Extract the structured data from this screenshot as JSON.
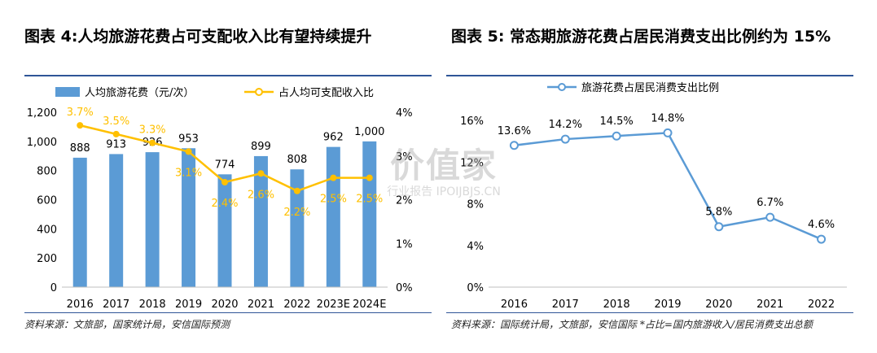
{
  "left": {
    "title": "图表 4:人均旅游花费占可支配收入比有望持续提升",
    "source": "资料来源：文旅部，国家统计局，安信国际预测"
  },
  "right": {
    "title": "图表 5: 常态期旅游花费占居民消费支出比例约为 15%",
    "source": "资料来源：国际统计局，文旅部，安信国际 *占比=国内旅游收入/居民消费支出总额"
  },
  "watermark": {
    "main": "价值家",
    "sub": "行业报告  IPOIJBJS.CN"
  },
  "colors": {
    "bar": "#5b9bd5",
    "line_left": "#ffc000",
    "line_right": "#5b9bd5",
    "label_left_pct": "#ffc000",
    "rule": "#2f5597"
  },
  "chart_data": [
    {
      "type": "bar",
      "categories": [
        "2016",
        "2017",
        "2018",
        "2019",
        "2020",
        "2021",
        "2022",
        "2023E",
        "2024E"
      ],
      "series": [
        {
          "name": "人均旅游花费（元/次）",
          "type": "bar",
          "axis": "left",
          "values": [
            888,
            913,
            926,
            953,
            774,
            899,
            808,
            962,
            1000
          ],
          "labels": [
            "888",
            "913",
            "926",
            "953",
            "774",
            "899",
            "808",
            "962",
            "1,000"
          ]
        },
        {
          "name": "占人均可支配收入比",
          "type": "line",
          "axis": "right",
          "values": [
            3.7,
            3.5,
            3.3,
            3.1,
            2.4,
            2.6,
            2.2,
            2.5,
            2.5
          ],
          "labels": [
            "3.7%",
            "3.5%",
            "3.3%",
            "3.1%",
            "2.4%",
            "2.6%",
            "2.2%",
            "2.5%",
            "2.5%"
          ]
        }
      ],
      "ylim_left": [
        0,
        1200
      ],
      "yticks_left": [
        "0",
        "200",
        "400",
        "600",
        "800",
        "1,000",
        "1,200"
      ],
      "ylim_right": [
        0,
        4
      ],
      "yticks_right": [
        "0%",
        "1%",
        "2%",
        "3%",
        "4%"
      ],
      "legend_position": "top",
      "grid": false
    },
    {
      "type": "line",
      "categories": [
        "2016",
        "2017",
        "2018",
        "2019",
        "2020",
        "2021",
        "2022"
      ],
      "series": [
        {
          "name": "旅游花费占居民消费支出比例",
          "values": [
            13.6,
            14.2,
            14.5,
            14.8,
            5.8,
            6.7,
            4.6
          ],
          "labels": [
            "13.6%",
            "14.2%",
            "14.5%",
            "14.8%",
            "5.8%",
            "6.7%",
            "4.6%"
          ]
        }
      ],
      "ylim": [
        0,
        16
      ],
      "yticks": [
        "0%",
        "4%",
        "8%",
        "12%",
        "16%"
      ],
      "legend_position": "top",
      "grid": false
    }
  ]
}
